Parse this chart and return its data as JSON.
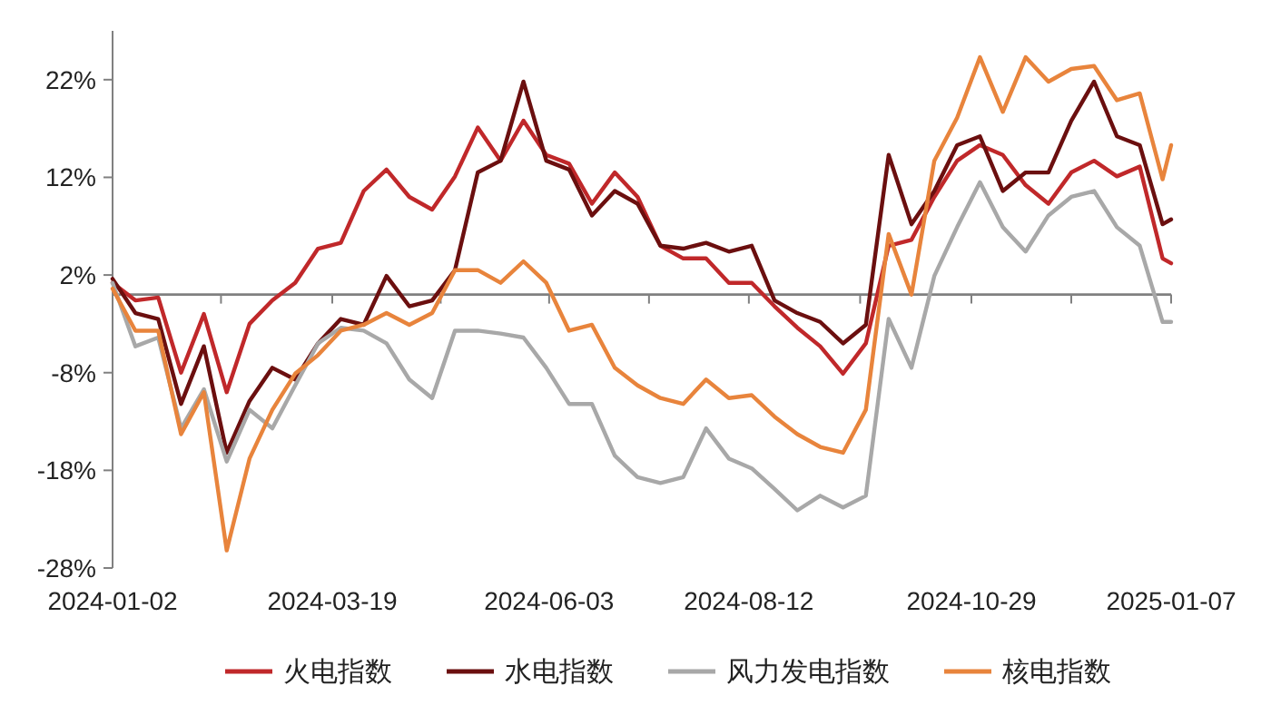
{
  "chart_data": {
    "type": "line",
    "x": [
      "2024-01-02",
      "2024-01-10",
      "2024-01-18",
      "2024-01-26",
      "2024-02-03",
      "2024-02-11",
      "2024-02-19",
      "2024-02-27",
      "2024-03-06",
      "2024-03-14",
      "2024-03-22",
      "2024-03-30",
      "2024-04-07",
      "2024-04-15",
      "2024-04-23",
      "2024-05-01",
      "2024-05-09",
      "2024-05-17",
      "2024-05-25",
      "2024-06-02",
      "2024-06-10",
      "2024-06-18",
      "2024-06-26",
      "2024-07-04",
      "2024-07-12",
      "2024-07-20",
      "2024-07-28",
      "2024-08-05",
      "2024-08-13",
      "2024-08-21",
      "2024-08-29",
      "2024-09-06",
      "2024-09-14",
      "2024-09-22",
      "2024-09-30",
      "2024-10-08",
      "2024-10-16",
      "2024-10-24",
      "2024-11-01",
      "2024-11-09",
      "2024-11-17",
      "2024-11-25",
      "2024-12-03",
      "2024-12-11",
      "2024-12-19",
      "2024-12-27",
      "2025-01-04",
      "2025-01-07"
    ],
    "xlim": [
      "2024-01-02",
      "2025-01-07"
    ],
    "xticks": [
      {
        "value": "2024-01-02",
        "label": "2024-01-02"
      },
      {
        "value": "2024-02-09",
        "label": null
      },
      {
        "value": "2024-03-19",
        "label": "2024-03-19"
      },
      {
        "value": "2024-04-26",
        "label": null
      },
      {
        "value": "2024-06-03",
        "label": "2024-06-03"
      },
      {
        "value": "2024-07-08",
        "label": null
      },
      {
        "value": "2024-08-12",
        "label": "2024-08-12"
      },
      {
        "value": "2024-09-20",
        "label": null
      },
      {
        "value": "2024-10-29",
        "label": "2024-10-29"
      },
      {
        "value": "2024-12-03",
        "label": null
      },
      {
        "value": "2025-01-07",
        "label": "2025-01-07"
      }
    ],
    "ylim": [
      -28,
      27
    ],
    "yticks": [
      {
        "value": 22,
        "label": "22%"
      },
      {
        "value": 12,
        "label": "12%"
      },
      {
        "value": 2,
        "label": "2%"
      },
      {
        "value": -8,
        "label": "-8%"
      },
      {
        "value": -18,
        "label": "-18%"
      },
      {
        "value": -28,
        "label": "-28%"
      }
    ],
    "legend": "bottom",
    "series": [
      {
        "name": "火电指数",
        "color": "#c0282a",
        "values": [
          1.2,
          -0.6,
          -0.3,
          -8,
          -2,
          -10,
          -3,
          -0.6,
          1.2,
          4.7,
          5.3,
          10.6,
          12.8,
          10,
          8.7,
          12.1,
          17.1,
          13.7,
          17.8,
          14.3,
          13.4,
          9.3,
          12.5,
          10,
          5,
          3.7,
          3.7,
          1.2,
          1.2,
          -1.2,
          -3.4,
          -5.3,
          -8.1,
          -5,
          5,
          5.6,
          10,
          13.7,
          15.3,
          14.3,
          11.2,
          9.3,
          12.5,
          13.7,
          12.1,
          13.1,
          3.7,
          3.2
        ]
      },
      {
        "name": "水电指数",
        "color": "#6b0f0f",
        "values": [
          1.6,
          -1.9,
          -2.5,
          -11.2,
          -5.3,
          -16.2,
          -10.9,
          -7.5,
          -8.7,
          -5,
          -2.5,
          -3.1,
          1.9,
          -1.2,
          -0.6,
          2.5,
          12.5,
          13.7,
          21.8,
          13.7,
          12.8,
          8.1,
          10.6,
          9.3,
          5,
          4.7,
          5.3,
          4.4,
          5,
          -0.6,
          -1.9,
          -2.8,
          -5,
          -3.1,
          14.3,
          7.2,
          10.6,
          15.3,
          16.2,
          10.6,
          12.5,
          12.5,
          17.8,
          21.8,
          16.2,
          15.3,
          7.2,
          7.7
        ]
      },
      {
        "name": "风力发电指数",
        "color": "#a8a8a8",
        "values": [
          1.2,
          -5.3,
          -4.4,
          -13.7,
          -9.7,
          -17.1,
          -11.8,
          -13.7,
          -9.3,
          -5,
          -3.4,
          -3.7,
          -5,
          -8.7,
          -10.6,
          -3.7,
          -3.7,
          -4,
          -4.4,
          -7.5,
          -11.2,
          -11.2,
          -16.5,
          -18.7,
          -19.3,
          -18.7,
          -13.7,
          -16.8,
          -17.8,
          -19.9,
          -22.1,
          -20.6,
          -21.8,
          -20.6,
          -2.5,
          -7.5,
          1.9,
          6.9,
          11.5,
          6.9,
          4.4,
          8.1,
          10,
          10.6,
          6.9,
          5,
          -2.8,
          -2.8
        ]
      },
      {
        "name": "核电指数",
        "color": "#e8843c",
        "values": [
          0.6,
          -3.7,
          -3.7,
          -14.3,
          -10,
          -26.2,
          -16.8,
          -11.8,
          -8.1,
          -6.2,
          -3.7,
          -3.1,
          -1.9,
          -3.1,
          -1.9,
          2.5,
          2.5,
          1.2,
          3.4,
          1.2,
          -3.7,
          -3.1,
          -7.5,
          -9.3,
          -10.6,
          -11.2,
          -8.7,
          -10.6,
          -10.3,
          -12.5,
          -14.3,
          -15.6,
          -16.2,
          -11.8,
          6.2,
          0,
          13.7,
          18.1,
          24.3,
          18.7,
          24.3,
          21.8,
          23.1,
          23.4,
          19.9,
          20.6,
          11.8,
          15.3
        ]
      }
    ]
  }
}
